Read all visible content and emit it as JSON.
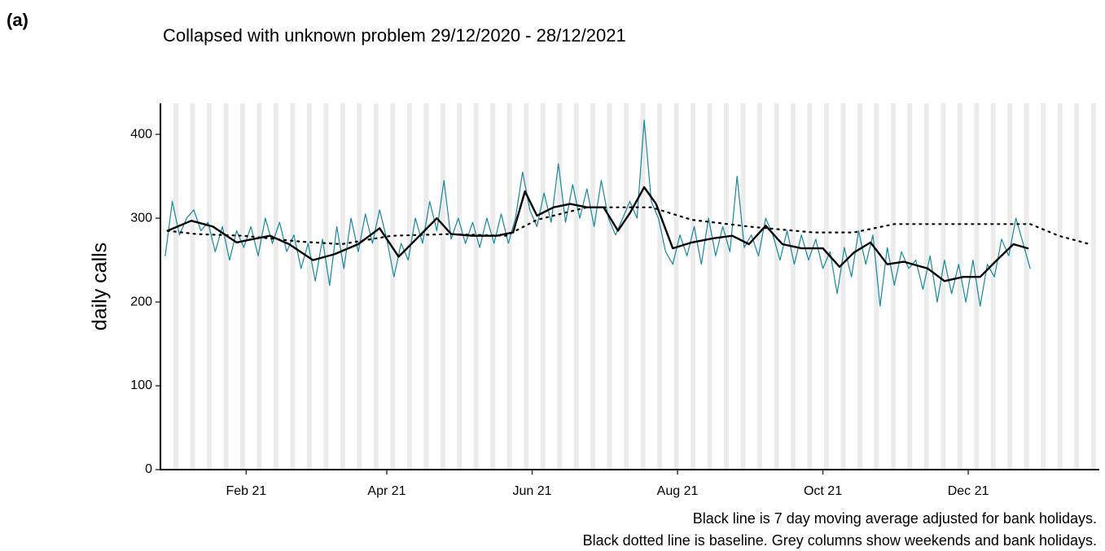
{
  "panel_label": "(a)",
  "chart_data": {
    "type": "line",
    "title": "Collapsed with unknown problem 29/12/2020 - 28/12/2021",
    "y_label": "daily calls",
    "notes": [
      "Black line is 7 day moving average adjusted for bank holidays.",
      "Black dotted line is baseline. Grey columns show weekends and bank holidays."
    ],
    "xlim": [
      -5,
      389
    ],
    "xticks": [
      {
        "value": 31,
        "label": "Feb 21"
      },
      {
        "value": 90,
        "label": "Apr 21"
      },
      {
        "value": 151,
        "label": "Jun 21"
      },
      {
        "value": 212,
        "label": "Aug 21"
      },
      {
        "value": 273,
        "label": "Oct 21"
      },
      {
        "value": 334,
        "label": "Dec 21"
      }
    ],
    "ylim": [
      0,
      437
    ],
    "yticks": [
      0,
      100,
      200,
      300,
      400
    ],
    "series": [
      {
        "color": "#16889c",
        "style": "thin",
        "x": [
          -3,
          0,
          3,
          6,
          9,
          12,
          15,
          18,
          21,
          24,
          27,
          30,
          33,
          36,
          39,
          42,
          45,
          48,
          51,
          54,
          57,
          60,
          63,
          66,
          69,
          72,
          75,
          78,
          81,
          84,
          87,
          90,
          93,
          96,
          99,
          102,
          105,
          108,
          111,
          114,
          117,
          120,
          123,
          126,
          129,
          132,
          135,
          138,
          141,
          144,
          147,
          150,
          153,
          156,
          159,
          162,
          165,
          168,
          171,
          174,
          177,
          180,
          183,
          186,
          189,
          192,
          195,
          198,
          201,
          204,
          207,
          210,
          213,
          216,
          219,
          222,
          225,
          228,
          231,
          234,
          237,
          240,
          243,
          246,
          249,
          252,
          255,
          258,
          261,
          264,
          267,
          270,
          273,
          276,
          279,
          282,
          285,
          288,
          291,
          294,
          297,
          300,
          303,
          306,
          309,
          312,
          315,
          318,
          321,
          324,
          327,
          330,
          333,
          336,
          339,
          342,
          345,
          348,
          351,
          354,
          357,
          360
        ],
        "values": [
          255,
          320,
          280,
          300,
          310,
          285,
          295,
          260,
          290,
          250,
          285,
          265,
          290,
          255,
          300,
          270,
          295,
          260,
          280,
          240,
          270,
          225,
          275,
          220,
          290,
          240,
          300,
          260,
          305,
          270,
          310,
          275,
          230,
          270,
          250,
          300,
          270,
          320,
          285,
          345,
          275,
          300,
          270,
          295,
          265,
          300,
          270,
          305,
          270,
          300,
          355,
          310,
          290,
          330,
          295,
          365,
          295,
          340,
          300,
          335,
          290,
          345,
          300,
          280,
          300,
          320,
          300,
          417,
          320,
          300,
          260,
          245,
          280,
          255,
          290,
          245,
          300,
          255,
          290,
          260,
          350,
          265,
          280,
          255,
          300,
          280,
          250,
          285,
          245,
          280,
          250,
          275,
          240,
          260,
          210,
          265,
          230,
          285,
          245,
          280,
          195,
          265,
          220,
          260,
          240,
          250,
          215,
          255,
          200,
          250,
          210,
          245,
          200,
          250,
          195,
          245,
          230,
          275,
          255,
          300,
          270,
          240
        ]
      },
      {
        "color": "#000000",
        "style": "thick",
        "x": [
          -2,
          8,
          17,
          27,
          32,
          41,
          49,
          59,
          68,
          78,
          87,
          95,
          102,
          111,
          117,
          126,
          136,
          143,
          148,
          153,
          160,
          167,
          174,
          181,
          187,
          192,
          198,
          203,
          210,
          218,
          227,
          235,
          242,
          249,
          256,
          264,
          273,
          280,
          286,
          293,
          300,
          307,
          317,
          324,
          332,
          339,
          346,
          353,
          359
        ],
        "values": [
          285,
          297,
          290,
          271,
          274,
          279,
          269,
          250,
          257,
          269,
          288,
          254,
          274,
          300,
          281,
          279,
          279,
          283,
          332,
          303,
          313,
          317,
          313,
          313,
          285,
          306,
          337,
          317,
          264,
          271,
          276,
          279,
          269,
          291,
          269,
          264,
          264,
          242,
          259,
          271,
          245,
          248,
          240,
          225,
          230,
          230,
          250,
          269,
          264
        ]
      },
      {
        "color": "#000000",
        "style": "dotted",
        "x": [
          -2,
          10,
          30,
          54,
          71,
          92,
          116,
          140,
          153,
          174,
          201,
          218,
          242,
          269,
          286,
          303,
          338,
          360,
          372,
          385
        ],
        "values": [
          285,
          281,
          279,
          272,
          269,
          279,
          281,
          279,
          298,
          313,
          313,
          298,
          290,
          283,
          283,
          293,
          293,
          293,
          279,
          269
        ]
      }
    ]
  }
}
